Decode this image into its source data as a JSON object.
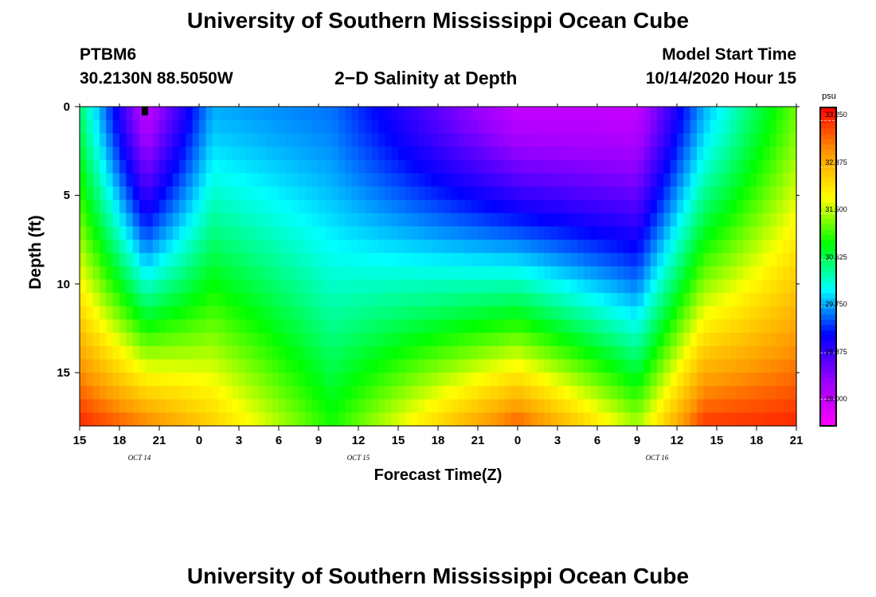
{
  "header": {
    "title": "University of Southern Mississippi Ocean Cube",
    "station_id": "PTBM6",
    "station_coords": "30.2130N 88.5050W",
    "plot_title": "2−D Salinity at Depth",
    "model_start_label": "Model Start Time",
    "model_start_value": "10/14/2020 Hour 15"
  },
  "footer": {
    "title": "University of Southern Mississippi Ocean Cube"
  },
  "chart_data": {
    "type": "heatmap",
    "title": "2−D Salinity at Depth",
    "xlabel": "Forecast Time(Z)",
    "ylabel": "Depth (ft)",
    "x_hours_range": [
      0,
      54
    ],
    "ylim": [
      0,
      18
    ],
    "y_ticks": [
      0,
      5,
      10,
      15
    ],
    "x_tick_labels": [
      "15",
      "18",
      "21",
      "0",
      "3",
      "6",
      "9",
      "12",
      "15",
      "18",
      "21",
      "0",
      "3",
      "6",
      "9",
      "12",
      "15",
      "18",
      "21"
    ],
    "date_labels": [
      {
        "text": "OCT  14",
        "hour": 4.5
      },
      {
        "text": "OCT  15",
        "hour": 21
      },
      {
        "text": "OCT  16",
        "hour": 43.5
      }
    ],
    "colorbar": {
      "unit": "psu",
      "min": 27.5,
      "max": 33.5,
      "ticks": [
        "33.250",
        "32.375",
        "31.500",
        "30.625",
        "29.750",
        "28.875",
        "28.000"
      ],
      "colors": [
        "#ff00ff",
        "#9900ff",
        "#0000ff",
        "#00ffff",
        "#00ff00",
        "#ffff00",
        "#ff9900",
        "#ff0000"
      ]
    },
    "salinity_summary": [
      {
        "hour": 0,
        "surface": 30.6,
        "bottom": 33.3
      },
      {
        "hour": 5,
        "surface": 28.0,
        "bottom": 32.8
      },
      {
        "hour": 10,
        "surface": 29.8,
        "bottom": 32.2
      },
      {
        "hour": 19,
        "surface": 29.6,
        "bottom": 31.0
      },
      {
        "hour": 33,
        "surface": 28.0,
        "bottom": 33.0
      },
      {
        "hour": 42,
        "surface": 28.0,
        "bottom": 31.5
      },
      {
        "hour": 47,
        "surface": 29.8,
        "bottom": 33.2
      },
      {
        "hour": 54,
        "surface": 31.3,
        "bottom": 33.3
      }
    ]
  }
}
